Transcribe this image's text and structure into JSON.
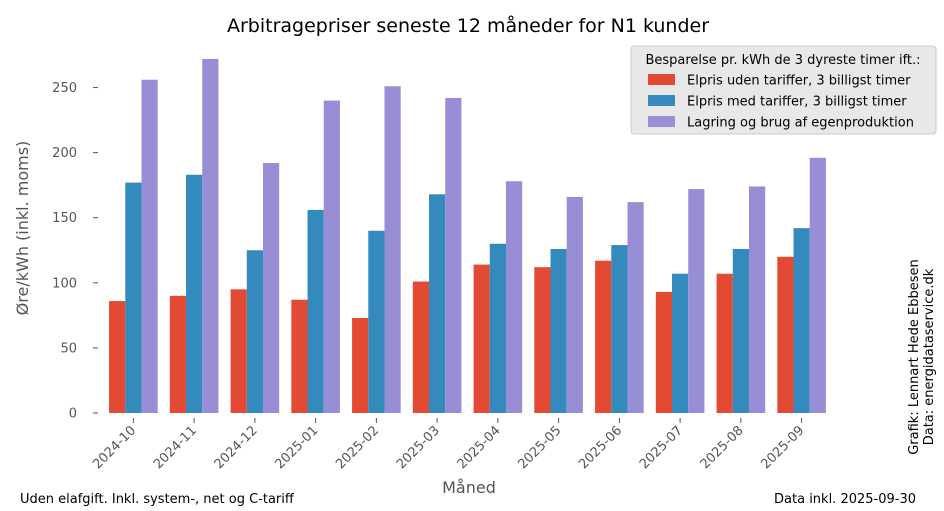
{
  "chart_data": {
    "type": "bar",
    "title": "Arbitragepriser seneste 12 måneder for N1 kunder",
    "xlabel": "Måned",
    "ylabel": "Øre/kWh (inkl. moms)",
    "ylim": [
      0,
      275
    ],
    "yticks": [
      0,
      50,
      100,
      150,
      200,
      250
    ],
    "grid": false,
    "legend_title": "Besparelse pr. kWh de 3 dyreste timer ift.:",
    "legend_position": "top-right",
    "categories": [
      "2024-10",
      "2024-11",
      "2024-12",
      "2025-01",
      "2025-02",
      "2025-03",
      "2025-04",
      "2025-05",
      "2025-06",
      "2025-07",
      "2025-08",
      "2025-09"
    ],
    "series": [
      {
        "name": "Elpris uden tariffer, 3 billigst timer",
        "color": "#e24a33",
        "values": [
          86,
          90,
          95,
          87,
          73,
          101,
          114,
          112,
          117,
          93,
          107,
          120
        ]
      },
      {
        "name": "Elpris med tariffer, 3 billigst timer",
        "color": "#348abd",
        "values": [
          177,
          183,
          125,
          156,
          140,
          168,
          130,
          126,
          129,
          107,
          126,
          142
        ]
      },
      {
        "name": "Lagring og brug af egenproduktion",
        "color": "#988ed5",
        "values": [
          256,
          272,
          192,
          240,
          251,
          242,
          178,
          166,
          162,
          172,
          174,
          196
        ]
      }
    ]
  },
  "footer": {
    "left": "Uden elafgift. Inkl. system-, net og C-tariff",
    "right": "Data inkl. 2025-09-30"
  },
  "credits": {
    "line1": "Grafik: Lennart Hede Ebbesen",
    "line2": "Data: energidataservice.dk"
  }
}
